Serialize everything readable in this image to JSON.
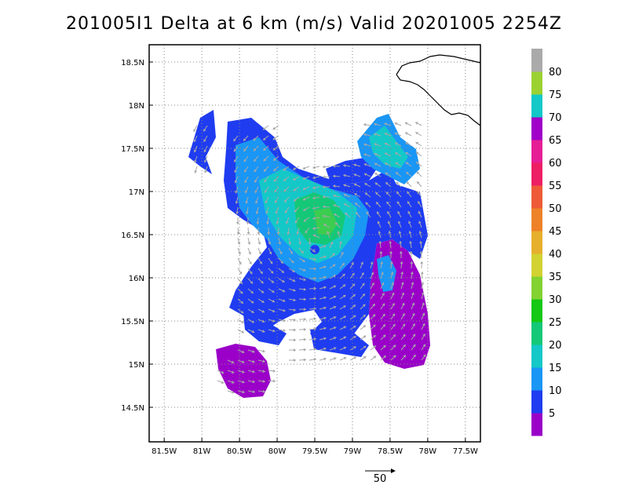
{
  "title": "201005I1 Delta at 6 km (m/s) Valid 20201005 2254Z",
  "map": {
    "lon_labels": [
      "81.5W",
      "81W",
      "80.5W",
      "80W",
      "79.5W",
      "79W",
      "78.5W",
      "78W",
      "77.5W"
    ],
    "lon_values": [
      -81.5,
      -81.0,
      -80.5,
      -80.0,
      -79.5,
      -79.0,
      -78.5,
      -78.0,
      -77.5
    ],
    "lat_labels": [
      "18.5N",
      "18N",
      "17.5N",
      "17N",
      "16.5N",
      "16N",
      "15.5N",
      "15N",
      "14.5N"
    ],
    "lat_values": [
      18.5,
      18.0,
      17.5,
      17.0,
      16.5,
      16.0,
      15.5,
      15.0,
      14.5
    ],
    "lon_range": [
      -81.7,
      -77.3
    ],
    "lat_range": [
      14.1,
      18.7
    ],
    "storm_center": [
      -79.45,
      16.45
    ],
    "land_color": "#000000",
    "grid_color": "#888888"
  },
  "colorbar": {
    "labels": [
      "5",
      "10",
      "15",
      "20",
      "25",
      "30",
      "35",
      "40",
      "45",
      "50",
      "55",
      "60",
      "65",
      "70",
      "75",
      "80"
    ],
    "colors": [
      "#9a00c8",
      "#1f3cf0",
      "#1a96f5",
      "#14c8c8",
      "#14c878",
      "#14c814",
      "#82d232",
      "#d2d232",
      "#e6af2d",
      "#ee8228",
      "#ee5a37",
      "#ee1e64",
      "#e61e96",
      "#a000c8",
      "#14c8c8",
      "#9bd232",
      "#aaaaaa"
    ]
  },
  "scale_vector": {
    "label": "50",
    "value_ms": 50
  }
}
